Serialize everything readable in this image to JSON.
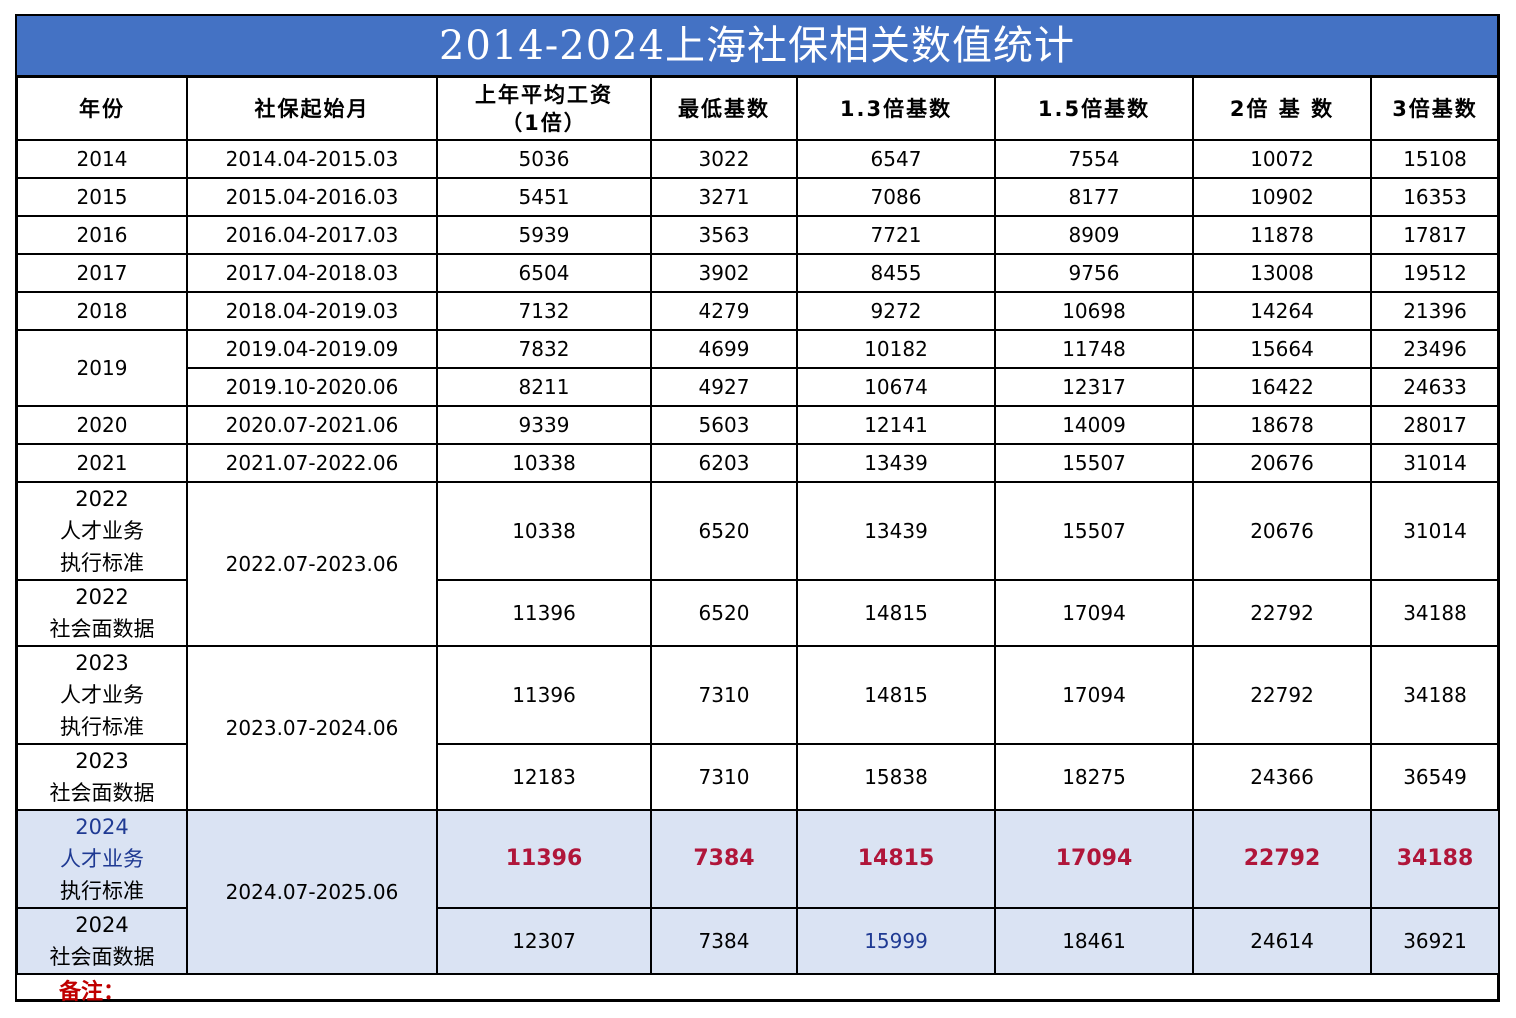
{
  "title": "2014-2024上海社保相关数值统计",
  "headers": {
    "year": "年份",
    "period": "社保起始月",
    "avg_wage_l1": "上年平均工资",
    "avg_wage_l2": "（1倍）",
    "min_base": "最低基数",
    "base_13": "1.3倍基数",
    "base_15": "1.5倍基数",
    "base_2": "2倍 基 数",
    "base_3": "3倍基数"
  },
  "rows": [
    {
      "year": "2014",
      "period": "2014.04-2015.03",
      "values": [
        "5036",
        "3022",
        "6547",
        "7554",
        "10072",
        "15108"
      ]
    },
    {
      "year": "2015",
      "period": "2015.04-2016.03",
      "values": [
        "5451",
        "3271",
        "7086",
        "8177",
        "10902",
        "16353"
      ]
    },
    {
      "year": "2016",
      "period": "2016.04-2017.03",
      "values": [
        "5939",
        "3563",
        "7721",
        "8909",
        "11878",
        "17817"
      ]
    },
    {
      "year": "2017",
      "period": "2017.04-2018.03",
      "values": [
        "6504",
        "3902",
        "8455",
        "9756",
        "13008",
        "19512"
      ]
    },
    {
      "year": "2018",
      "period": "2018.04-2019.03",
      "values": [
        "7132",
        "4279",
        "9272",
        "10698",
        "14264",
        "21396"
      ]
    },
    {
      "year": "2019",
      "period": "2019.04-2019.09",
      "values": [
        "7832",
        "4699",
        "10182",
        "11748",
        "15664",
        "23496"
      ]
    },
    {
      "period": "2019.10-2020.06",
      "values": [
        "8211",
        "4927",
        "10674",
        "12317",
        "16422",
        "24633"
      ]
    },
    {
      "year": "2020",
      "period": "2020.07-2021.06",
      "values": [
        "9339",
        "5603",
        "12141",
        "14009",
        "18678",
        "28017"
      ]
    },
    {
      "year": "2021",
      "period": "2021.07-2022.06",
      "values": [
        "10338",
        "6203",
        "13439",
        "15507",
        "20676",
        "31014"
      ]
    },
    {
      "year_l1": "2022",
      "year_l2": "人才业务",
      "year_l3": "执行标准",
      "period": "2022.07-2023.06",
      "values": [
        "10338",
        "6520",
        "13439",
        "15507",
        "20676",
        "31014"
      ]
    },
    {
      "year_l1": "2022",
      "year_l2": "社会面数据",
      "values": [
        "11396",
        "6520",
        "14815",
        "17094",
        "22792",
        "34188"
      ]
    },
    {
      "year_l1": "2023",
      "year_l2": "人才业务",
      "year_l3": "执行标准",
      "period": "2023.07-2024.06",
      "values": [
        "11396",
        "7310",
        "14815",
        "17094",
        "22792",
        "34188"
      ]
    },
    {
      "year_l1": "2023",
      "year_l2": "社会面数据",
      "values": [
        "12183",
        "7310",
        "15838",
        "18275",
        "24366",
        "36549"
      ]
    },
    {
      "year_l1": "2024",
      "year_l2": "人才业务",
      "year_l3": "执行标准",
      "period": "2024.07-2025.06",
      "values": [
        "11396",
        "7384",
        "14815",
        "17094",
        "22792",
        "34188"
      ]
    },
    {
      "year_l1": "2024",
      "year_l2": "社会面数据",
      "values": [
        "12307",
        "7384",
        "15999",
        "18461",
        "24614",
        "36921"
      ]
    }
  ],
  "remark_label": "备注：",
  "colors": {
    "title_bg": "#4472c4",
    "highlight_bg": "#dae3f3",
    "highlight_value": "#b0163a",
    "year_2024_text": "#1f3a93",
    "remark": "#c00000"
  }
}
